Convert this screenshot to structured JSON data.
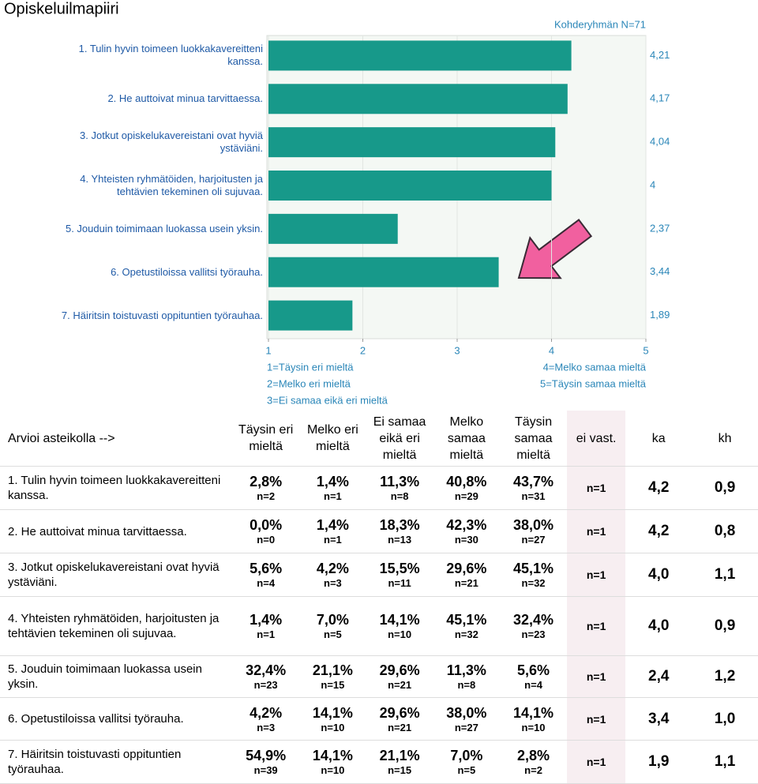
{
  "chart_data": {
    "type": "bar",
    "orientation": "horizontal",
    "title": "Opiskeluilmapiiri",
    "annotation": "Kohderyhmän N=71",
    "categories": [
      "1. Tulin hyvin toimeen luokkakavereitteni kanssa.",
      "2. He auttoivat minua tarvittaessa.",
      "3. Jotkut opiskelukavereistani ovat hyviä ystäviäni.",
      "4. Yhteisten ryhmätöiden, harjoitusten ja tehtävien tekeminen oli sujuvaa.",
      "5. Jouduin toimimaan luokassa usein yksin.",
      "6. Opetustiloissa vallitsi työrauha.",
      "7. Häiritsin toistuvasti oppituntien työrauhaa."
    ],
    "values": [
      4.21,
      4.17,
      4.04,
      4,
      2.37,
      3.44,
      1.89
    ],
    "value_labels": [
      "4,21",
      "4,17",
      "4,04",
      "4",
      "2,37",
      "3,44",
      "1,89"
    ],
    "color": "#17998a",
    "xlim": [
      1,
      5
    ],
    "xticks": [
      1,
      2,
      3,
      4,
      5
    ],
    "grid": true,
    "scale_legend_left": [
      "1=Täysin eri mieltä",
      "2=Melko eri mieltä",
      "3=Ei samaa eikä eri mieltä"
    ],
    "scale_legend_right": [
      "4=Melko samaa mieltä",
      "5=Täysin samaa mieltä"
    ]
  },
  "table": {
    "header": [
      "Arvioi asteikolla -->",
      "Täysin eri mieltä",
      "Melko eri mieltä",
      "Ei samaa eikä eri mieltä",
      "Melko samaa mieltä",
      "Täysin samaa mieltä",
      "ei vast.",
      "ka",
      "kh"
    ],
    "rows": [
      {
        "label": "1. Tulin hyvin toimeen luokkakavereitteni kanssa.",
        "cells": [
          [
            "2,8%",
            "n=2"
          ],
          [
            "1,4%",
            "n=1"
          ],
          [
            "11,3%",
            "n=8"
          ],
          [
            "40,8%",
            "n=29"
          ],
          [
            "43,7%",
            "n=31"
          ]
        ],
        "no_answer": "n=1",
        "ka": "4,2",
        "kh": "0,9"
      },
      {
        "label": "2. He auttoivat minua tarvittaessa.",
        "cells": [
          [
            "0,0%",
            "n=0"
          ],
          [
            "1,4%",
            "n=1"
          ],
          [
            "18,3%",
            "n=13"
          ],
          [
            "42,3%",
            "n=30"
          ],
          [
            "38,0%",
            "n=27"
          ]
        ],
        "no_answer": "n=1",
        "ka": "4,2",
        "kh": "0,8"
      },
      {
        "label": "3. Jotkut opiskelukavereistani ovat hyviä ystäviäni.",
        "cells": [
          [
            "5,6%",
            "n=4"
          ],
          [
            "4,2%",
            "n=3"
          ],
          [
            "15,5%",
            "n=11"
          ],
          [
            "29,6%",
            "n=21"
          ],
          [
            "45,1%",
            "n=32"
          ]
        ],
        "no_answer": "n=1",
        "ka": "4,0",
        "kh": "1,1"
      },
      {
        "label": "4. Yhteisten ryhmätöiden, harjoitusten ja tehtävien tekeminen oli sujuvaa.",
        "cells": [
          [
            "1,4%",
            "n=1"
          ],
          [
            "7,0%",
            "n=5"
          ],
          [
            "14,1%",
            "n=10"
          ],
          [
            "45,1%",
            "n=32"
          ],
          [
            "32,4%",
            "n=23"
          ]
        ],
        "no_answer": "n=1",
        "ka": "4,0",
        "kh": "0,9"
      },
      {
        "label": "5. Jouduin toimimaan luokassa usein yksin.",
        "cells": [
          [
            "32,4%",
            "n=23"
          ],
          [
            "21,1%",
            "n=15"
          ],
          [
            "29,6%",
            "n=21"
          ],
          [
            "11,3%",
            "n=8"
          ],
          [
            "5,6%",
            "n=4"
          ]
        ],
        "no_answer": "n=1",
        "ka": "2,4",
        "kh": "1,2"
      },
      {
        "label": "6. Opetustiloissa vallitsi työrauha.",
        "cells": [
          [
            "4,2%",
            "n=3"
          ],
          [
            "14,1%",
            "n=10"
          ],
          [
            "29,6%",
            "n=21"
          ],
          [
            "38,0%",
            "n=27"
          ],
          [
            "14,1%",
            "n=10"
          ]
        ],
        "no_answer": "n=1",
        "ka": "3,4",
        "kh": "1,0"
      },
      {
        "label": "7. Häiritsin toistuvasti oppituntien työrauhaa.",
        "cells": [
          [
            "54,9%",
            "n=39"
          ],
          [
            "14,1%",
            "n=10"
          ],
          [
            "21,1%",
            "n=15"
          ],
          [
            "7,0%",
            "n=5"
          ],
          [
            "2,8%",
            "n=2"
          ]
        ],
        "no_answer": "n=1",
        "ka": "1,9",
        "kh": "1,1"
      }
    ]
  }
}
